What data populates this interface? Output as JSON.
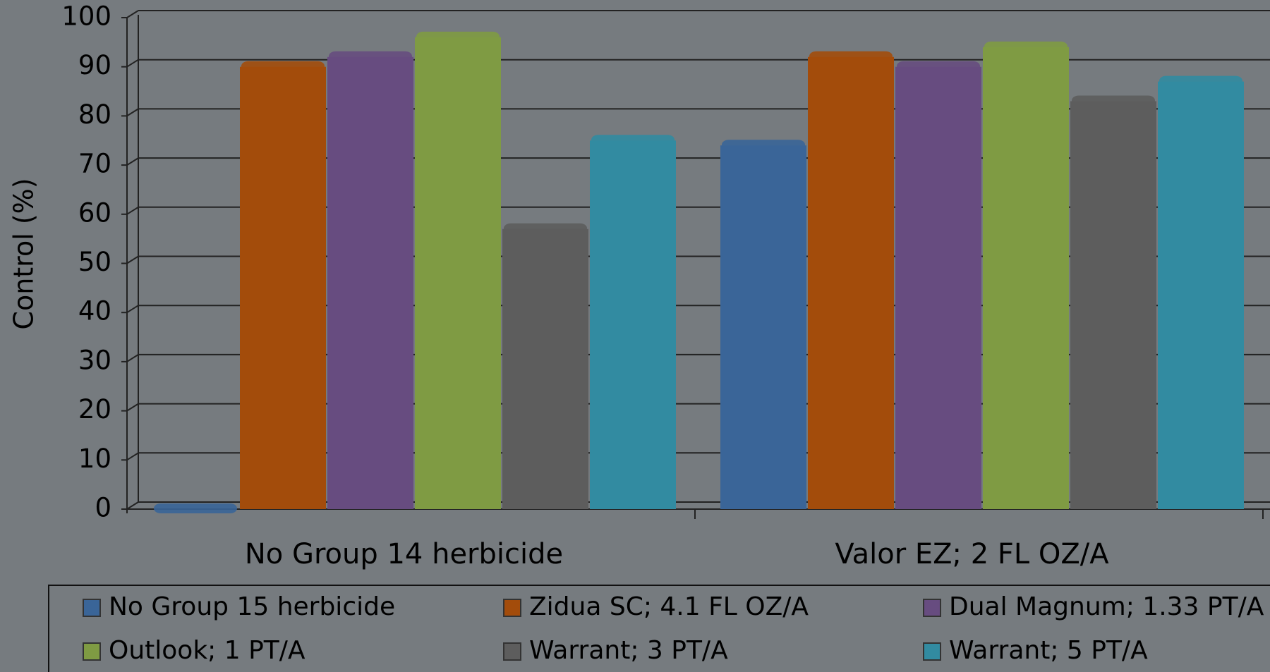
{
  "chart_data": {
    "type": "bar",
    "ylabel": "Control (%)",
    "categories": [
      "No Group 14 herbicide",
      "Valor EZ; 2 FL OZ/A"
    ],
    "series": [
      {
        "name": "No Group 15 herbicide",
        "color": "#3a6598",
        "values": [
          0,
          74
        ]
      },
      {
        "name": "Zidua SC; 4.1 FL OZ/A",
        "color": "#a34c0b",
        "values": [
          90,
          92
        ]
      },
      {
        "name": "Dual Magnum; 1.33 PT/A",
        "color": "#674c80",
        "values": [
          92,
          90
        ]
      },
      {
        "name": "Outlook; 1 PT/A",
        "color": "#7f9b43",
        "values": [
          96,
          94
        ]
      },
      {
        "name": "Warrant; 3 PT/A",
        "color": "#5d5d5d",
        "values": [
          57,
          83
        ]
      },
      {
        "name": "Warrant; 5 PT/A",
        "color": "#328ba1",
        "values": [
          75,
          87
        ]
      }
    ],
    "ylim": [
      0,
      100
    ],
    "yticks": [
      0,
      10,
      20,
      30,
      40,
      50,
      60,
      70,
      80,
      90,
      100
    ],
    "grid": true
  }
}
